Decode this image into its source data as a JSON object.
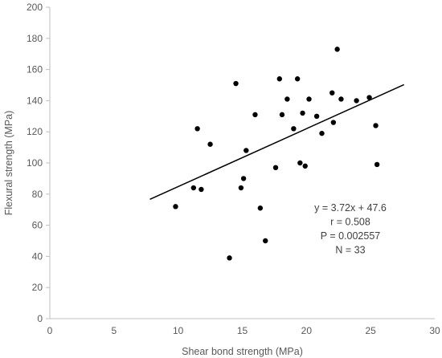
{
  "chart_data": {
    "type": "scatter",
    "xlabel": "Shear bond strength (MPa)",
    "ylabel": "Flexural strength (MPa)",
    "xlim": [
      0,
      30
    ],
    "ylim": [
      0,
      200
    ],
    "xticks": [
      0,
      5,
      10,
      15,
      20,
      25,
      30
    ],
    "yticks": [
      0,
      20,
      40,
      60,
      80,
      100,
      120,
      140,
      160,
      180,
      200
    ],
    "grid": false,
    "points": [
      [
        9.8,
        72
      ],
      [
        11.2,
        84
      ],
      [
        11.5,
        122
      ],
      [
        11.8,
        83
      ],
      [
        12.5,
        112
      ],
      [
        14.0,
        39
      ],
      [
        14.5,
        151
      ],
      [
        14.9,
        84
      ],
      [
        15.1,
        90
      ],
      [
        15.3,
        108
      ],
      [
        16.0,
        131
      ],
      [
        16.4,
        71
      ],
      [
        16.8,
        50
      ],
      [
        17.6,
        97
      ],
      [
        17.9,
        154
      ],
      [
        18.1,
        131
      ],
      [
        18.5,
        141
      ],
      [
        19.0,
        122
      ],
      [
        19.3,
        154
      ],
      [
        19.5,
        100
      ],
      [
        19.7,
        132
      ],
      [
        19.9,
        98
      ],
      [
        20.2,
        141
      ],
      [
        20.8,
        130
      ],
      [
        21.2,
        119
      ],
      [
        22.0,
        145
      ],
      [
        22.1,
        126
      ],
      [
        22.4,
        173
      ],
      [
        22.7,
        141
      ],
      [
        23.9,
        140
      ],
      [
        24.9,
        142
      ],
      [
        25.4,
        124
      ],
      [
        25.5,
        99
      ]
    ],
    "trendline": {
      "x_start": 7.8,
      "x_end": 27.6,
      "slope": 3.72,
      "intercept": 47.6
    },
    "annotations": [
      "y = 3.72x + 47.6",
      "r = 0.508",
      "P = 0.002557",
      "N = 33"
    ]
  }
}
